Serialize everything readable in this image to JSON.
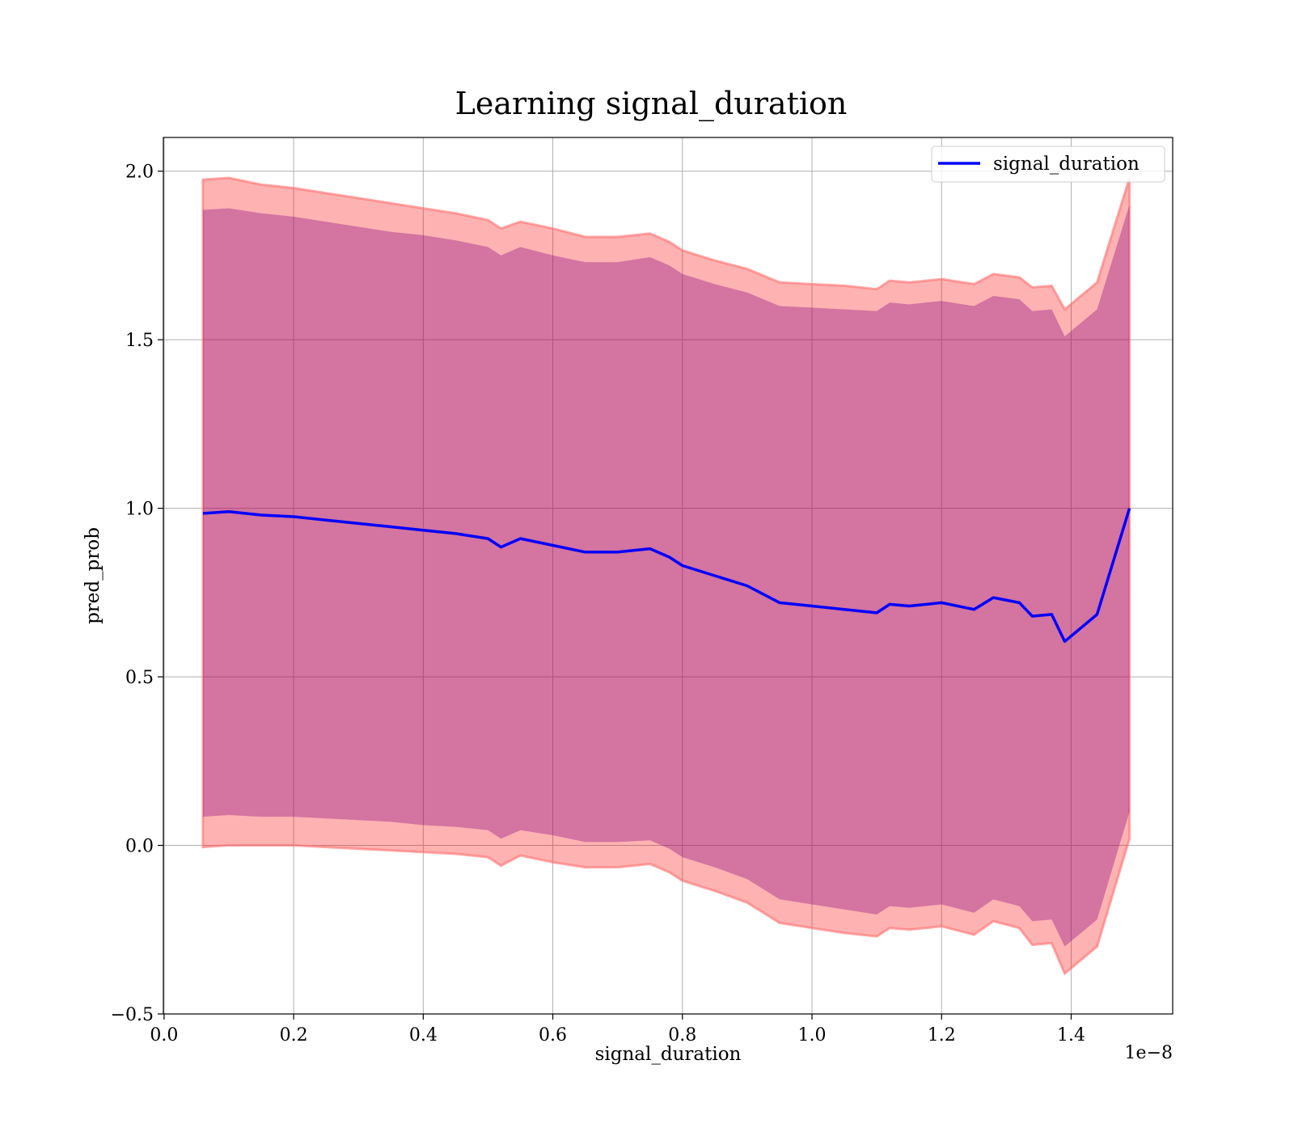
{
  "chart_data": {
    "type": "line",
    "title": "Learning signal_duration",
    "xlabel": "signal_duration",
    "ylabel": "pred_prob",
    "x_offset_label": "1e−8",
    "x_scale_exponent": -8,
    "xlim": [
      -1.1e-11,
      1.5567e-08
    ],
    "ylim": [
      -0.5,
      2.1
    ],
    "x_ticks": [
      0.0,
      0.2,
      0.4,
      0.6,
      0.8,
      1.0,
      1.2,
      1.4
    ],
    "x_tick_labels": [
      "0.0",
      "0.2",
      "0.4",
      "0.6",
      "0.8",
      "1.0",
      "1.2",
      "1.4"
    ],
    "y_ticks": [
      -0.5,
      0.0,
      0.5,
      1.0,
      1.5,
      2.0
    ],
    "y_tick_labels": [
      "−0.5",
      "0.0",
      "0.5",
      "1.0",
      "1.5",
      "2.0"
    ],
    "grid": true,
    "legend_position": "top-right",
    "colors": {
      "line": "#0000ff",
      "outer_band": "#ff0000",
      "inner_band": "#800080",
      "band_edge": "#ff7070"
    },
    "series": [
      {
        "name": "signal_duration",
        "x": [
          0.06,
          0.1,
          0.15,
          0.2,
          0.25,
          0.3,
          0.35,
          0.4,
          0.45,
          0.5,
          0.52,
          0.55,
          0.6,
          0.65,
          0.7,
          0.75,
          0.78,
          0.8,
          0.85,
          0.9,
          0.95,
          1.0,
          1.05,
          1.1,
          1.12,
          1.15,
          1.2,
          1.25,
          1.28,
          1.32,
          1.34,
          1.37,
          1.39,
          1.44,
          1.49
        ],
        "y": [
          0.985,
          0.99,
          0.98,
          0.975,
          0.965,
          0.955,
          0.945,
          0.935,
          0.925,
          0.91,
          0.885,
          0.91,
          0.89,
          0.87,
          0.87,
          0.88,
          0.855,
          0.83,
          0.8,
          0.77,
          0.72,
          0.71,
          0.7,
          0.69,
          0.715,
          0.71,
          0.72,
          0.7,
          0.735,
          0.72,
          0.68,
          0.685,
          0.605,
          0.685,
          1.0
        ]
      }
    ],
    "bands": [
      {
        "kind": "outer",
        "x": [
          0.06,
          0.1,
          0.15,
          0.2,
          0.25,
          0.3,
          0.35,
          0.4,
          0.45,
          0.5,
          0.52,
          0.55,
          0.6,
          0.65,
          0.7,
          0.75,
          0.78,
          0.8,
          0.85,
          0.9,
          0.95,
          1.0,
          1.05,
          1.1,
          1.12,
          1.15,
          1.2,
          1.25,
          1.28,
          1.32,
          1.34,
          1.37,
          1.39,
          1.44,
          1.49
        ],
        "half_width": [
          0.99,
          0.99,
          0.98,
          0.975,
          0.97,
          0.965,
          0.96,
          0.955,
          0.95,
          0.945,
          0.945,
          0.94,
          0.94,
          0.935,
          0.935,
          0.935,
          0.935,
          0.935,
          0.935,
          0.94,
          0.95,
          0.955,
          0.96,
          0.96,
          0.96,
          0.96,
          0.96,
          0.965,
          0.96,
          0.965,
          0.975,
          0.975,
          0.985,
          0.985,
          0.98
        ]
      },
      {
        "kind": "inner",
        "x": [
          0.06,
          0.1,
          0.15,
          0.2,
          0.25,
          0.3,
          0.35,
          0.4,
          0.45,
          0.5,
          0.52,
          0.55,
          0.6,
          0.65,
          0.7,
          0.75,
          0.78,
          0.8,
          0.85,
          0.9,
          0.95,
          1.0,
          1.05,
          1.1,
          1.12,
          1.15,
          1.2,
          1.25,
          1.28,
          1.32,
          1.34,
          1.37,
          1.39,
          1.44,
          1.49
        ],
        "half_width": [
          0.9,
          0.9,
          0.895,
          0.89,
          0.885,
          0.88,
          0.875,
          0.875,
          0.87,
          0.865,
          0.865,
          0.865,
          0.86,
          0.86,
          0.86,
          0.865,
          0.865,
          0.865,
          0.865,
          0.87,
          0.88,
          0.885,
          0.89,
          0.895,
          0.895,
          0.895,
          0.895,
          0.9,
          0.895,
          0.9,
          0.905,
          0.905,
          0.905,
          0.905,
          0.9
        ]
      }
    ]
  }
}
